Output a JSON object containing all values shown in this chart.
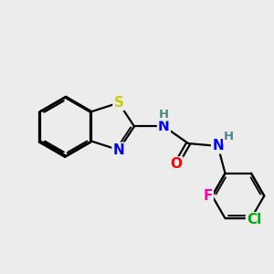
{
  "background_color": "#ececec",
  "atom_colors": {
    "S": "#cccc00",
    "N": "#0000ff",
    "O": "#ff0000",
    "F": "#ff00aa",
    "Cl": "#00aa00",
    "H_label": "#4a8888",
    "C": "#000000"
  },
  "bond_color": "#000000",
  "bond_width": 1.6,
  "font_size_atoms": 11,
  "font_size_H": 9.5
}
